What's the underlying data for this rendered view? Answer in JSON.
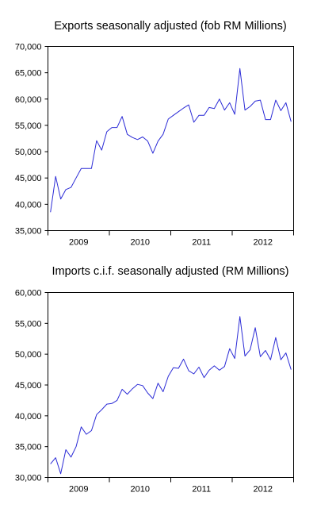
{
  "chart_data": [
    {
      "type": "line",
      "title": "Exports seasonally adjusted (fob RM Millions)",
      "xlabel": "",
      "ylabel": "",
      "x_range": [
        "2009-01",
        "2012-12"
      ],
      "x_tick_labels": [
        "2009",
        "2010",
        "2011",
        "2012"
      ],
      "ylim": [
        35000,
        70000
      ],
      "y_tick_values": [
        35000,
        40000,
        45000,
        50000,
        55000,
        60000,
        65000,
        70000
      ],
      "y_tick_labels": [
        "35,000",
        "40,000",
        "45,000",
        "50,000",
        "55,000",
        "60,000",
        "65,000",
        "70,000"
      ],
      "grid": false,
      "line_color": "#2b2bd6",
      "series": [
        {
          "x": [
            "2009-01",
            "2009-02",
            "2009-03",
            "2009-04",
            "2009-05",
            "2009-06",
            "2009-07",
            "2009-08",
            "2009-09",
            "2009-10",
            "2009-11",
            "2009-12",
            "2010-01",
            "2010-02",
            "2010-03",
            "2010-04",
            "2010-05",
            "2010-06",
            "2010-07",
            "2010-08",
            "2010-09",
            "2010-10",
            "2010-11",
            "2010-12",
            "2011-01",
            "2011-02",
            "2011-03",
            "2011-04",
            "2011-05",
            "2011-06",
            "2011-07",
            "2011-08",
            "2011-09",
            "2011-10",
            "2011-11",
            "2011-12",
            "2012-01",
            "2012-02",
            "2012-03",
            "2012-04",
            "2012-05",
            "2012-06",
            "2012-07",
            "2012-08",
            "2012-09",
            "2012-10",
            "2012-11",
            "2012-12"
          ],
          "values": [
            38500,
            45300,
            41000,
            42800,
            43200,
            45000,
            46800,
            46800,
            46800,
            52100,
            50300,
            53800,
            54600,
            54600,
            56700,
            53300,
            52700,
            52300,
            52800,
            52000,
            49700,
            52000,
            53300,
            56200,
            56900,
            57600,
            58300,
            58900,
            55600,
            56900,
            56900,
            58400,
            58200,
            60000,
            57900,
            59300,
            57100,
            65800,
            57900,
            58600,
            59600,
            59800,
            56100,
            56100,
            59800,
            57800,
            59300,
            55700
          ]
        }
      ]
    },
    {
      "type": "line",
      "title": "Imports c.i.f. seasonally adjusted (RM Millions)",
      "xlabel": "",
      "ylabel": "",
      "x_range": [
        "2009-01",
        "2012-12"
      ],
      "x_tick_labels": [
        "2009",
        "2010",
        "2011",
        "2012"
      ],
      "ylim": [
        30000,
        60000
      ],
      "y_tick_values": [
        30000,
        35000,
        40000,
        45000,
        50000,
        55000,
        60000
      ],
      "y_tick_labels": [
        "30,000",
        "35,000",
        "40,000",
        "45,000",
        "50,000",
        "55,000",
        "60,000"
      ],
      "grid": false,
      "line_color": "#2b2bd6",
      "series": [
        {
          "x": [
            "2009-01",
            "2009-02",
            "2009-03",
            "2009-04",
            "2009-05",
            "2009-06",
            "2009-07",
            "2009-08",
            "2009-09",
            "2009-10",
            "2009-11",
            "2009-12",
            "2010-01",
            "2010-02",
            "2010-03",
            "2010-04",
            "2010-05",
            "2010-06",
            "2010-07",
            "2010-08",
            "2010-09",
            "2010-10",
            "2010-11",
            "2010-12",
            "2011-01",
            "2011-02",
            "2011-03",
            "2011-04",
            "2011-05",
            "2011-06",
            "2011-07",
            "2011-08",
            "2011-09",
            "2011-10",
            "2011-11",
            "2011-12",
            "2012-01",
            "2012-02",
            "2012-03",
            "2012-04",
            "2012-05",
            "2012-06",
            "2012-07",
            "2012-08",
            "2012-09",
            "2012-10",
            "2012-11",
            "2012-12"
          ],
          "values": [
            32200,
            33200,
            30600,
            34500,
            33300,
            35000,
            38200,
            37000,
            37600,
            40200,
            41000,
            41900,
            42000,
            42500,
            44300,
            43500,
            44400,
            45100,
            44900,
            43700,
            42800,
            45300,
            43900,
            46400,
            47800,
            47700,
            49200,
            47300,
            46800,
            47900,
            46200,
            47400,
            48100,
            47400,
            48000,
            50900,
            49300,
            56100,
            49700,
            50700,
            54300,
            49600,
            50600,
            49100,
            52700,
            49100,
            50200,
            47500
          ]
        }
      ]
    }
  ]
}
